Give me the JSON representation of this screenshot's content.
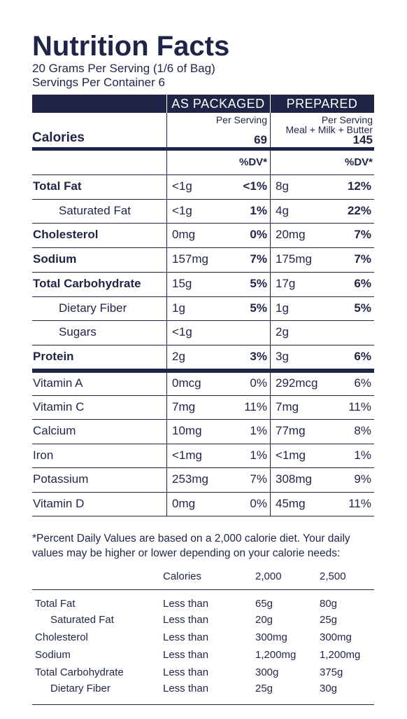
{
  "header": {
    "title": "Nutrition Facts",
    "serving_size": "20 Grams Per Serving (1/6 of Bag)",
    "servings": "Servings Per Container 6"
  },
  "columns": [
    "AS PACKAGED",
    "PREPARED"
  ],
  "per_serving": [
    "Per Serving",
    "Per Serving"
  ],
  "prepared_note": "Meal + Milk + Butter",
  "calories": {
    "label": "Calories",
    "values": [
      69,
      145
    ]
  },
  "dv_header": [
    "%DV*",
    "%DV*"
  ],
  "nutrients": [
    {
      "name": "Total Fat",
      "packaged": {
        "amount": "<1g",
        "dv": "<1%"
      },
      "prepared": {
        "amount": "8g",
        "dv": "12%"
      }
    },
    {
      "name": "Saturated Fat",
      "packaged": {
        "amount": "<1g",
        "dv": "1%"
      },
      "prepared": {
        "amount": "4g",
        "dv": "22%"
      }
    },
    {
      "name": "Cholesterol",
      "packaged": {
        "amount": "0mg",
        "dv": "0%"
      },
      "prepared": {
        "amount": "20mg",
        "dv": "7%"
      }
    },
    {
      "name": "Sodium",
      "packaged": {
        "amount": "157mg",
        "dv": "7%"
      },
      "prepared": {
        "amount": "175mg",
        "dv": "7%"
      }
    },
    {
      "name": "Total Carbohydrate",
      "packaged": {
        "amount": "15g",
        "dv": "5%"
      },
      "prepared": {
        "amount": "17g",
        "dv": "6%"
      }
    },
    {
      "name": "Dietary Fiber",
      "packaged": {
        "amount": "1g",
        "dv": "5%"
      },
      "prepared": {
        "amount": "1g",
        "dv": "5%"
      }
    },
    {
      "name": "Sugars",
      "packaged": {
        "amount": "<1g"
      },
      "prepared": {
        "amount": "2g"
      }
    },
    {
      "name": "Protein",
      "packaged": {
        "amount": "2g",
        "dv": "3%"
      },
      "prepared": {
        "amount": "3g",
        "dv": "6%"
      }
    }
  ],
  "vitamins": [
    {
      "name": "Vitamin A",
      "packaged": {
        "amount": "0mcg",
        "dv": "0%"
      },
      "prepared": {
        "amount": "292mcg",
        "dv": "6%"
      }
    },
    {
      "name": "Vitamin C",
      "packaged": {
        "amount": "7mg",
        "dv": "11%"
      },
      "prepared": {
        "amount": "7mg",
        "dv": "11%"
      }
    },
    {
      "name": "Calcium",
      "packaged": {
        "amount": "10mg",
        "dv": "1%"
      },
      "prepared": {
        "amount": "77mg",
        "dv": "8%"
      }
    },
    {
      "name": "Iron",
      "packaged": {
        "amount": "<1mg",
        "dv": "1%"
      },
      "prepared": {
        "amount": "<1mg",
        "dv": "1%"
      }
    },
    {
      "name": "Potassium",
      "packaged": {
        "amount": "253mg",
        "dv": "7%"
      },
      "prepared": {
        "amount": "308mg",
        "dv": "9%"
      }
    },
    {
      "name": "Vitamin D",
      "packaged": {
        "amount": "0mg",
        "dv": "0%"
      },
      "prepared": {
        "amount": "45mg",
        "dv": "11%"
      }
    }
  ],
  "footnote": "*Percent Daily Values are based on a 2,000 calorie diet. Your daily values may be higher or lower depending on your calorie needs:",
  "reference": {
    "header": [
      "Calories",
      "2,000",
      "2,500"
    ],
    "rows": [
      [
        "Total Fat",
        "Less than",
        "65g",
        "80g"
      ],
      [
        "Saturated Fat",
        "Less than",
        "20g",
        "25g"
      ],
      [
        "Cholesterol",
        "Less than",
        "300mg",
        "300mg"
      ],
      [
        "Sodium",
        "Less than",
        "1,200mg",
        "1,200mg"
      ],
      [
        "Total Carbohydrate",
        "Less than",
        "300g",
        "375g"
      ],
      [
        "Dietary Fiber",
        "Less than",
        "25g",
        "30g"
      ]
    ]
  }
}
